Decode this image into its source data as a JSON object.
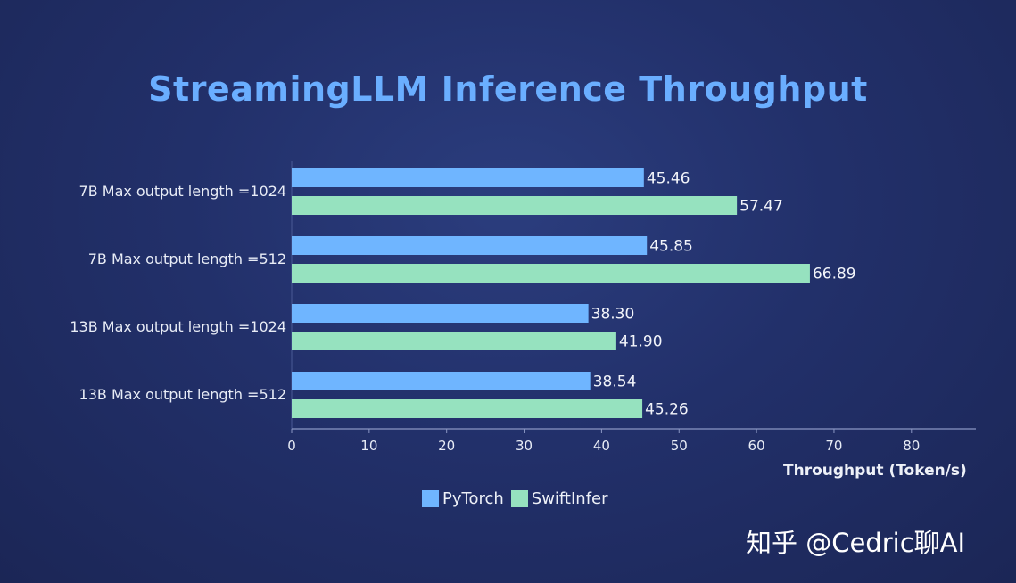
{
  "chart_data": {
    "type": "bar",
    "orientation": "horizontal",
    "title": "StreamingLLM Inference Throughput",
    "xlabel": "Throughput (Token/s)",
    "ylabel": "",
    "categories": [
      "7B Max output length =1024",
      "7B Max output length =512",
      "13B Max output length =1024",
      "13B Max output length =512"
    ],
    "series": [
      {
        "name": "PyTorch",
        "values": [
          45.46,
          45.85,
          38.3,
          38.54
        ],
        "labels": [
          "45.46",
          "45.85",
          "38.30",
          "38.54"
        ],
        "color": "#6fb5ff"
      },
      {
        "name": "SwiftInfer",
        "values": [
          57.47,
          66.89,
          41.9,
          45.26
        ],
        "labels": [
          "57.47",
          "66.89",
          "41.90",
          "45.26"
        ],
        "color": "#96e2bf"
      }
    ],
    "xlim": [
      0,
      88
    ],
    "xticks": [
      0,
      10,
      20,
      30,
      40,
      50,
      60,
      70,
      80
    ],
    "xtick_labels": [
      "0",
      "10",
      "20",
      "30",
      "40",
      "50",
      "60",
      "70",
      "80"
    ],
    "grid": false,
    "legend_position": "bottom-center"
  },
  "watermark": "知乎 @Cedric聊AI"
}
